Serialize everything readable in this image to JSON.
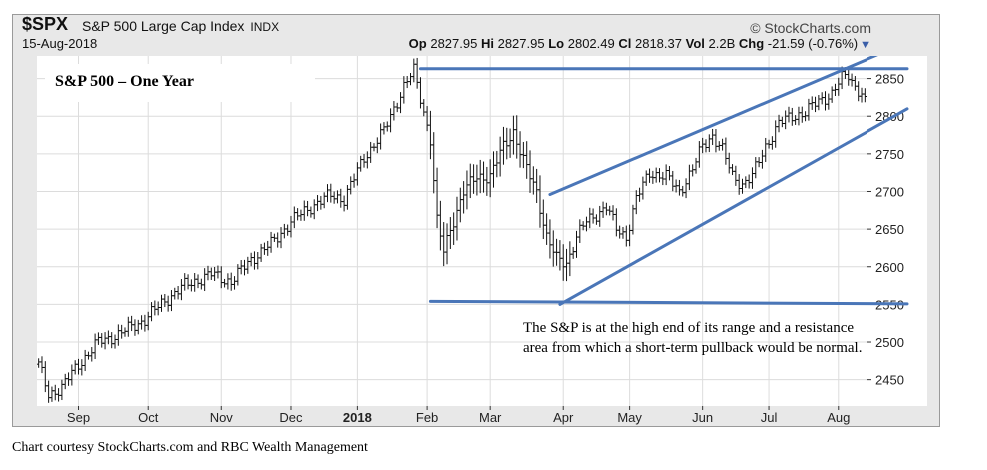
{
  "header": {
    "symbol": "$SPX",
    "name": "S&P 500 Large Cap Index",
    "exchange": "INDX",
    "brand": "© StockCharts.com",
    "date": "15-Aug-2018",
    "open_label": "Op",
    "open_value": "2827.95",
    "high_label": "Hi",
    "high_value": "2827.95",
    "low_label": "Lo",
    "low_value": "2802.49",
    "close_label": "Cl",
    "close_value": "2818.37",
    "vol_label": "Vol",
    "vol_value": "2.2B",
    "chg_label": "Chg",
    "chg_value": "-21.59 (-0.76%)"
  },
  "chart_data": {
    "type": "ohlc",
    "title": "S&P 500 – One Year",
    "annotation": "The S&P is at the high end of its range and a resistance area from which a short-term pullback would be normal.",
    "credit": "Chart courtesy StockCharts.com and RBC Wealth Management",
    "ylim": [
      2415,
      2880
    ],
    "y_ticks": [
      2450,
      2500,
      2550,
      2600,
      2650,
      2700,
      2750,
      2800,
      2850
    ],
    "x_ticks": [
      {
        "label": "Sep",
        "bar": 12,
        "bold": false
      },
      {
        "label": "Oct",
        "bar": 33,
        "bold": false
      },
      {
        "label": "Nov",
        "bar": 55,
        "bold": false
      },
      {
        "label": "Dec",
        "bar": 76,
        "bold": false
      },
      {
        "label": "2018",
        "bar": 96,
        "bold": true
      },
      {
        "label": "Feb",
        "bar": 117,
        "bold": false
      },
      {
        "label": "Mar",
        "bar": 136,
        "bold": false
      },
      {
        "label": "Apr",
        "bar": 158,
        "bold": false
      },
      {
        "label": "May",
        "bar": 178,
        "bold": false
      },
      {
        "label": "Jun",
        "bar": 200,
        "bold": false
      },
      {
        "label": "Jul",
        "bar": 220,
        "bold": false
      },
      {
        "label": "Aug",
        "bar": 241,
        "bold": false
      }
    ],
    "n_bars": 250,
    "anchors": [
      [
        0,
        2470
      ],
      [
        3,
        2430
      ],
      [
        7,
        2440
      ],
      [
        12,
        2470
      ],
      [
        18,
        2500
      ],
      [
        24,
        2510
      ],
      [
        32,
        2530
      ],
      [
        38,
        2555
      ],
      [
        44,
        2575
      ],
      [
        52,
        2590
      ],
      [
        58,
        2580
      ],
      [
        64,
        2610
      ],
      [
        70,
        2630
      ],
      [
        76,
        2660
      ],
      [
        82,
        2680
      ],
      [
        88,
        2695
      ],
      [
        92,
        2690
      ],
      [
        98,
        2745
      ],
      [
        104,
        2780
      ],
      [
        110,
        2840
      ],
      [
        113,
        2860
      ],
      [
        118,
        2770
      ],
      [
        120,
        2660
      ],
      [
        122,
        2620
      ],
      [
        124,
        2650
      ],
      [
        128,
        2700
      ],
      [
        132,
        2720
      ],
      [
        136,
        2720
      ],
      [
        140,
        2760
      ],
      [
        143,
        2780
      ],
      [
        146,
        2740
      ],
      [
        150,
        2700
      ],
      [
        153,
        2640
      ],
      [
        156,
        2610
      ],
      [
        159,
        2605
      ],
      [
        162,
        2640
      ],
      [
        165,
        2660
      ],
      [
        168,
        2670
      ],
      [
        171,
        2680
      ],
      [
        174,
        2650
      ],
      [
        177,
        2640
      ],
      [
        180,
        2690
      ],
      [
        184,
        2725
      ],
      [
        189,
        2720
      ],
      [
        193,
        2700
      ],
      [
        197,
        2730
      ],
      [
        200,
        2760
      ],
      [
        203,
        2775
      ],
      [
        206,
        2755
      ],
      [
        209,
        2720
      ],
      [
        212,
        2710
      ],
      [
        215,
        2720
      ],
      [
        219,
        2760
      ],
      [
        223,
        2790
      ],
      [
        227,
        2800
      ],
      [
        231,
        2805
      ],
      [
        235,
        2820
      ],
      [
        239,
        2830
      ],
      [
        242,
        2850
      ],
      [
        244,
        2855
      ],
      [
        246,
        2840
      ],
      [
        248,
        2830
      ],
      [
        249,
        2818
      ]
    ],
    "trendlines": [
      {
        "name": "resistance",
        "from": [
          115,
          2863
        ],
        "to": [
          250,
          2863
        ]
      },
      {
        "name": "support",
        "from": [
          118,
          2554
        ],
        "to": [
          250,
          2551
        ]
      },
      {
        "name": "channel-upper",
        "from": [
          154,
          2696
        ],
        "to": [
          250,
          2876
        ]
      },
      {
        "name": "channel-lower",
        "from": [
          157,
          2550
        ],
        "to": [
          250,
          2780
        ]
      }
    ]
  }
}
